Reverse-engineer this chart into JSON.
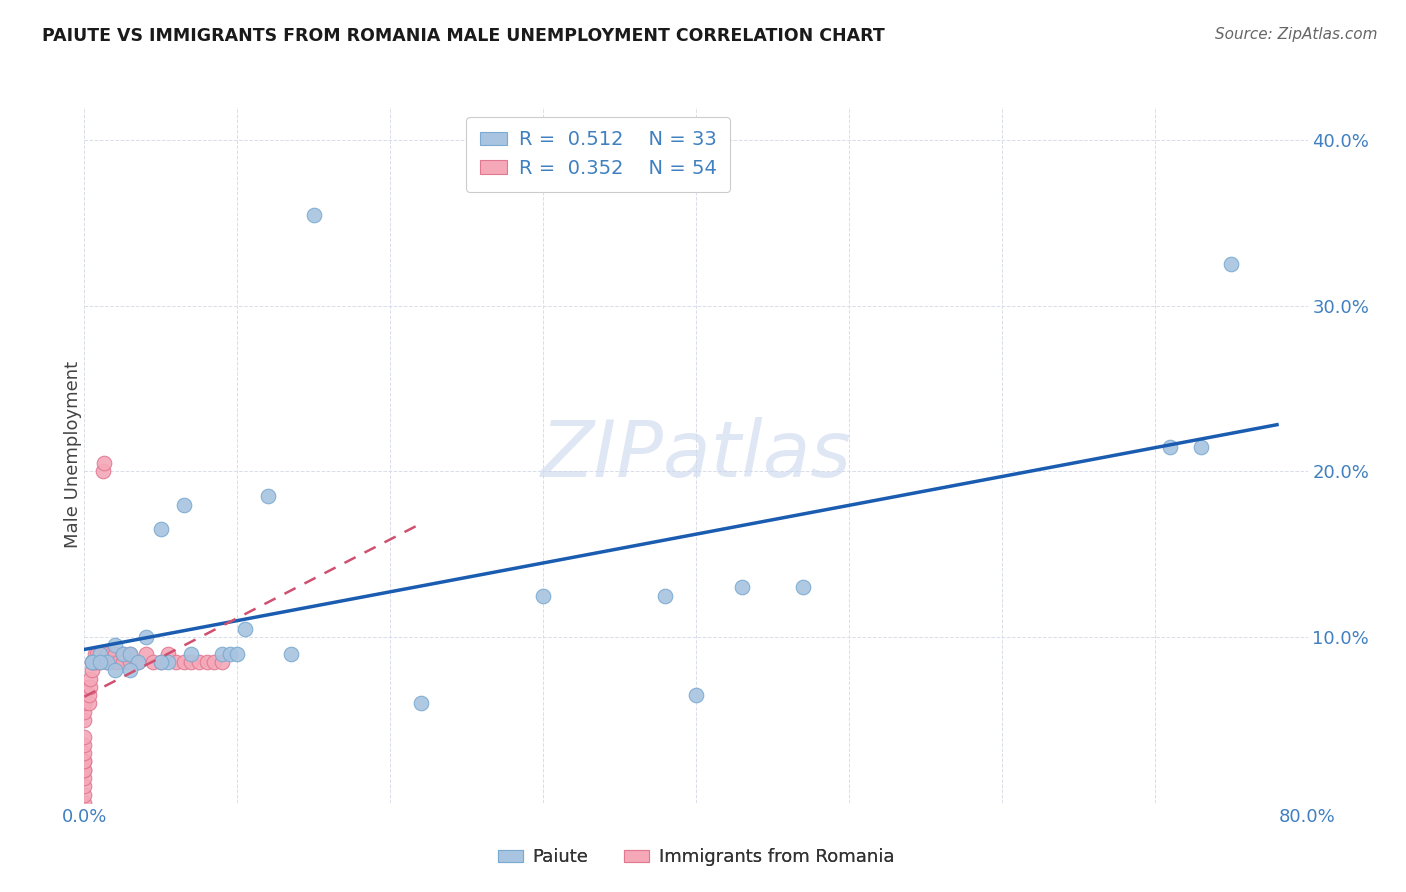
{
  "title": "PAIUTE VS IMMIGRANTS FROM ROMANIA MALE UNEMPLOYMENT CORRELATION CHART",
  "source": "Source: ZipAtlas.com",
  "ylabel": "Male Unemployment",
  "xlim": [
    0.0,
    0.8
  ],
  "ylim": [
    0.0,
    0.42
  ],
  "x_ticks": [
    0.0,
    0.1,
    0.2,
    0.3,
    0.4,
    0.5,
    0.6,
    0.7,
    0.8
  ],
  "y_ticks": [
    0.0,
    0.1,
    0.2,
    0.3,
    0.4
  ],
  "blue_scatter_color": "#a8c4e0",
  "blue_edge_color": "#7aaad0",
  "pink_scatter_color": "#f4a8b8",
  "pink_edge_color": "#e07890",
  "trendline_blue_color": "#1a5cb0",
  "trendline_pink_color": "#d05070",
  "grid_color": "#d8dde8",
  "watermark_color": "#ccd8ee",
  "tick_color": "#4080c0",
  "legend_r1": "0.512",
  "legend_n1": "33",
  "legend_r2": "0.352",
  "legend_n2": "54",
  "paiute_x": [
    0.005,
    0.01,
    0.015,
    0.02,
    0.025,
    0.03,
    0.035,
    0.04,
    0.05,
    0.055,
    0.065,
    0.07,
    0.09,
    0.095,
    0.1,
    0.105,
    0.12,
    0.135,
    0.15,
    0.22,
    0.3,
    0.38,
    0.4,
    0.43,
    0.47,
    0.71,
    0.73,
    0.75,
    0.005,
    0.01,
    0.02,
    0.03,
    0.05
  ],
  "paiute_y": [
    0.085,
    0.09,
    0.085,
    0.095,
    0.09,
    0.09,
    0.085,
    0.1,
    0.165,
    0.085,
    0.18,
    0.09,
    0.09,
    0.09,
    0.09,
    0.105,
    0.185,
    0.09,
    0.355,
    0.06,
    0.125,
    0.125,
    0.065,
    0.13,
    0.13,
    0.215,
    0.215,
    0.325,
    0.085,
    0.085,
    0.08,
    0.08,
    0.085
  ],
  "romania_x": [
    0.0,
    0.0,
    0.0,
    0.0,
    0.0,
    0.0,
    0.0,
    0.0,
    0.0,
    0.0,
    0.0,
    0.0,
    0.0,
    0.0,
    0.0,
    0.003,
    0.003,
    0.004,
    0.004,
    0.005,
    0.005,
    0.006,
    0.007,
    0.007,
    0.008,
    0.009,
    0.01,
    0.01,
    0.012,
    0.013,
    0.015,
    0.015,
    0.016,
    0.017,
    0.018,
    0.02,
    0.02,
    0.022,
    0.025,
    0.025,
    0.03,
    0.03,
    0.035,
    0.04,
    0.045,
    0.05,
    0.055,
    0.06,
    0.065,
    0.07,
    0.075,
    0.08,
    0.085,
    0.09
  ],
  "romania_y": [
    0.0,
    0.005,
    0.01,
    0.015,
    0.02,
    0.02,
    0.025,
    0.025,
    0.03,
    0.035,
    0.04,
    0.05,
    0.055,
    0.06,
    0.07,
    0.06,
    0.065,
    0.07,
    0.075,
    0.08,
    0.085,
    0.085,
    0.09,
    0.085,
    0.09,
    0.085,
    0.085,
    0.09,
    0.2,
    0.205,
    0.085,
    0.09,
    0.085,
    0.085,
    0.09,
    0.085,
    0.09,
    0.085,
    0.09,
    0.085,
    0.085,
    0.09,
    0.085,
    0.09,
    0.085,
    0.085,
    0.09,
    0.085,
    0.085,
    0.085,
    0.085,
    0.085,
    0.085,
    0.085
  ]
}
